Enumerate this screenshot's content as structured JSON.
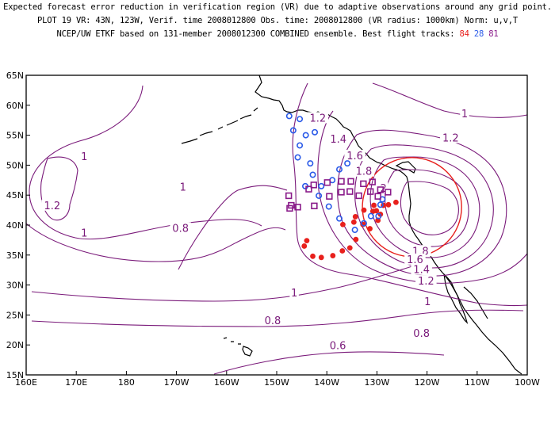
{
  "header": {
    "line1": "Expected forecast error reduction in verification region (VR) due to adaptive observations around any grid point.",
    "line2": "PLOT 19 VR: 43N, 123W, Verif. time 2008012800 Obs. time: 2008012800 (VR radius: 1000km) Norm: u,v,T",
    "line3_prefix": "NCEP/UW ETKF based on 131-member 2008012300 COMBINED ensemble.  Best flight tracks:",
    "flight1": "84",
    "flight2": "28",
    "flight3": "81"
  },
  "map": {
    "lon_min": 160,
    "lon_max": 260,
    "lat_min": 15,
    "lat_max": 65,
    "lon_ticks": [
      "160E",
      "170E",
      "180",
      "170W",
      "160W",
      "150W",
      "140W",
      "130W",
      "120W",
      "110W",
      "100W"
    ],
    "lat_ticks": [
      "15N",
      "20N",
      "25N",
      "30N",
      "35N",
      "40N",
      "45N",
      "50N",
      "55N",
      "60N",
      "65N"
    ],
    "colors": {
      "contour": "#7a1a7a",
      "vr_circle": "#e8201c",
      "flight1": "#e8201c",
      "flight2": "#2a5ae8",
      "flight3": "#8a1b8a",
      "coast": "#000000"
    }
  },
  "contour_labels": [
    {
      "text": "1.2",
      "lon": 218.2,
      "lat": 57.8
    },
    {
      "text": "1",
      "lon": 247.5,
      "lat": 58.5
    },
    {
      "text": "1.2",
      "lon": 244.7,
      "lat": 54.5
    },
    {
      "text": "1.4",
      "lon": 222.3,
      "lat": 54.3
    },
    {
      "text": "1.6",
      "lon": 225.6,
      "lat": 51.5
    },
    {
      "text": "1.8",
      "lon": 227.4,
      "lat": 48.9
    },
    {
      "text": "2",
      "lon": 231.3,
      "lat": 46.1
    },
    {
      "text": "1",
      "lon": 171.6,
      "lat": 51.4
    },
    {
      "text": "1.2",
      "lon": 165.2,
      "lat": 43.2
    },
    {
      "text": "1",
      "lon": 171.6,
      "lat": 38.6
    },
    {
      "text": "1",
      "lon": 191.3,
      "lat": 46.3
    },
    {
      "text": "0.8",
      "lon": 190.8,
      "lat": 39.4
    },
    {
      "text": "1.8",
      "lon": 238.7,
      "lat": 35.6
    },
    {
      "text": "1.6",
      "lon": 237.6,
      "lat": 34.2
    },
    {
      "text": "1.4",
      "lon": 238.9,
      "lat": 32.5
    },
    {
      "text": "1.2",
      "lon": 239.8,
      "lat": 30.6
    },
    {
      "text": "1",
      "lon": 240.1,
      "lat": 27.2
    },
    {
      "text": "0.8",
      "lon": 238.9,
      "lat": 21.9
    },
    {
      "text": "1",
      "lon": 213.5,
      "lat": 28.6
    },
    {
      "text": "0.8",
      "lon": 209.2,
      "lat": 24.0
    },
    {
      "text": "0.6",
      "lon": 222.2,
      "lat": 19.8
    }
  ],
  "verification_region": {
    "lon": 237,
    "lat": 43,
    "radius_km": 1000
  },
  "flight_tracks": [
    {
      "label": "84",
      "marker": "filled-circle",
      "points": [
        [
          215.5,
          36.5
        ],
        [
          216,
          37.4
        ],
        [
          217.2,
          34.8
        ],
        [
          218.9,
          34.6
        ],
        [
          221.2,
          34.9
        ],
        [
          223.1,
          35.7
        ],
        [
          224.6,
          36.2
        ],
        [
          225.8,
          37.6
        ],
        [
          223.2,
          40.1
        ],
        [
          225.4,
          40.5
        ],
        [
          227.2,
          40.1
        ],
        [
          228.6,
          39.4
        ],
        [
          230.2,
          40.8
        ],
        [
          225.7,
          41.4
        ],
        [
          227.4,
          42.5
        ],
        [
          229.2,
          42.3
        ],
        [
          229.9,
          42.4
        ],
        [
          230.7,
          41.8
        ],
        [
          229.4,
          43.3
        ],
        [
          231.3,
          43.3
        ],
        [
          232.3,
          43.4
        ],
        [
          233.8,
          43.8
        ]
      ]
    },
    {
      "label": "28",
      "marker": "open-circle",
      "points": [
        [
          212.5,
          58.2
        ],
        [
          214.6,
          57.7
        ],
        [
          213.3,
          55.8
        ],
        [
          215.8,
          55.0
        ],
        [
          217.6,
          55.5
        ],
        [
          214.6,
          53.3
        ],
        [
          214.2,
          51.3
        ],
        [
          216.7,
          50.3
        ],
        [
          217.2,
          48.4
        ],
        [
          215.7,
          46.5
        ],
        [
          218.9,
          46.5
        ],
        [
          221.1,
          47.5
        ],
        [
          222.5,
          49.3
        ],
        [
          224.1,
          50.3
        ],
        [
          218.4,
          44.9
        ],
        [
          220.4,
          43.1
        ],
        [
          222.5,
          41.1
        ],
        [
          225.6,
          39.2
        ],
        [
          227.4,
          40.3
        ],
        [
          228.8,
          41.5
        ],
        [
          230.3,
          41.5
        ],
        [
          230.7,
          43.4
        ],
        [
          231.1,
          44.3
        ]
      ]
    },
    {
      "label": "81",
      "marker": "open-square",
      "points": [
        [
          212.4,
          44.9
        ],
        [
          212.6,
          42.8
        ],
        [
          212.9,
          43.3
        ],
        [
          214.2,
          43.0
        ],
        [
          216.4,
          46.0
        ],
        [
          217.4,
          46.7
        ],
        [
          217.5,
          43.2
        ],
        [
          220.1,
          47.1
        ],
        [
          220.5,
          44.8
        ],
        [
          222.9,
          47.3
        ],
        [
          222.9,
          45.5
        ],
        [
          224.8,
          47.3
        ],
        [
          224.6,
          45.6
        ],
        [
          226.4,
          44.9
        ],
        [
          227.3,
          46.9
        ],
        [
          229.1,
          47.2
        ],
        [
          228.7,
          45.6
        ],
        [
          230.7,
          45.9
        ],
        [
          230.2,
          44.8
        ],
        [
          232.2,
          45.5
        ]
      ]
    }
  ]
}
